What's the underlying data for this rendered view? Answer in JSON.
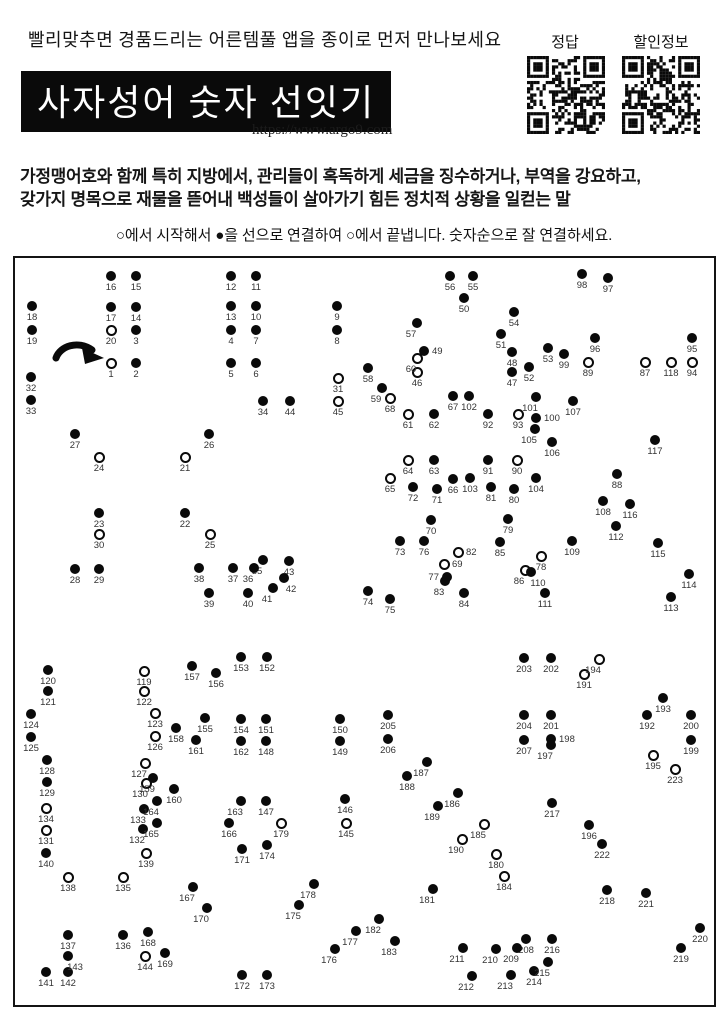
{
  "header": {
    "tagline": "빨리맞추면 경품드리는 어른템풀 앱을 종이로 먼저 만나보세요",
    "title": "사자성어 숫자 선잇기",
    "url": "https://www.argo9.com",
    "qr_labels": [
      "정답",
      "할인정보"
    ]
  },
  "description": {
    "lines": [
      "가정맹어호와 함께 특히 지방에서, 관리들이 혹독하게 세금을 징수하거나, 부역을 강요하고,",
      "갖가지 명목으로 재물을 뜯어내 백성들이 살아가기 힘든 정치적 상황을 일컫는 말"
    ]
  },
  "instructions": "○에서 시작해서 ●을 선으로 연결하여 ○에서 끝냅니다. 숫자순으로 잘 연결하세요.",
  "colors": {
    "ink": "#0a0a0a",
    "label": "#333333"
  },
  "legend": {
    "start_marker": "open-circle",
    "line_marker": "filled-circle",
    "end_marker": "open-circle"
  },
  "puzzle": {
    "dot_types": {
      "f": "filled",
      "o": "open"
    },
    "dots": [
      [
        1,
        111,
        363,
        "o"
      ],
      [
        2,
        136,
        363,
        "f"
      ],
      [
        3,
        136,
        330,
        "f"
      ],
      [
        4,
        231,
        330,
        "f"
      ],
      [
        5,
        231,
        363,
        "f"
      ],
      [
        6,
        256,
        363,
        "f"
      ],
      [
        7,
        256,
        330,
        "f"
      ],
      [
        8,
        337,
        330,
        "f"
      ],
      [
        9,
        337,
        306,
        "f"
      ],
      [
        10,
        256,
        306,
        "f"
      ],
      [
        11,
        256,
        276,
        "f"
      ],
      [
        12,
        231,
        276,
        "f"
      ],
      [
        13,
        231,
        306,
        "f"
      ],
      [
        14,
        136,
        307,
        "f"
      ],
      [
        15,
        136,
        276,
        "f"
      ],
      [
        16,
        111,
        276,
        "f"
      ],
      [
        17,
        111,
        307,
        "f"
      ],
      [
        18,
        32,
        306,
        "f"
      ],
      [
        19,
        32,
        330,
        "f"
      ],
      [
        20,
        111,
        330,
        "o"
      ],
      [
        21,
        185,
        457,
        "o"
      ],
      [
        22,
        185,
        513,
        "f"
      ],
      [
        23,
        99,
        513,
        "f"
      ],
      [
        24,
        99,
        457,
        "o"
      ],
      [
        25,
        210,
        534,
        "o"
      ],
      [
        26,
        209,
        434,
        "f"
      ],
      [
        27,
        75,
        434,
        "f"
      ],
      [
        28,
        75,
        569,
        "f"
      ],
      [
        29,
        99,
        569,
        "f"
      ],
      [
        30,
        99,
        534,
        "o"
      ],
      [
        31,
        338,
        378,
        "o"
      ],
      [
        32,
        31,
        377,
        "f"
      ],
      [
        33,
        31,
        400,
        "f"
      ],
      [
        34,
        263,
        401,
        "f"
      ],
      [
        35,
        263,
        560,
        "f",
        "bl"
      ],
      [
        36,
        254,
        568,
        "f",
        "bl"
      ],
      [
        37,
        233,
        568,
        "f"
      ],
      [
        38,
        199,
        568,
        "f"
      ],
      [
        39,
        209,
        593,
        "f"
      ],
      [
        40,
        248,
        593,
        "f"
      ],
      [
        41,
        273,
        588,
        "f",
        "bl"
      ],
      [
        42,
        284,
        578,
        "f",
        "br"
      ],
      [
        43,
        289,
        561,
        "f"
      ],
      [
        44,
        290,
        401,
        "f"
      ],
      [
        45,
        338,
        401,
        "o"
      ],
      [
        46,
        417,
        372,
        "o"
      ],
      [
        47,
        512,
        372,
        "f"
      ],
      [
        48,
        512,
        352,
        "f"
      ],
      [
        49,
        424,
        351,
        "f",
        "r"
      ],
      [
        50,
        464,
        298,
        "f"
      ],
      [
        51,
        501,
        334,
        "f"
      ],
      [
        52,
        529,
        367,
        "f"
      ],
      [
        53,
        548,
        348,
        "f"
      ],
      [
        54,
        514,
        312,
        "f"
      ],
      [
        55,
        473,
        276,
        "f"
      ],
      [
        56,
        450,
        276,
        "f"
      ],
      [
        57,
        417,
        323,
        "f",
        "bl"
      ],
      [
        58,
        368,
        368,
        "f"
      ],
      [
        59,
        382,
        388,
        "f",
        "bl"
      ],
      [
        60,
        417,
        358,
        "o",
        "bl"
      ],
      [
        61,
        408,
        414,
        "o"
      ],
      [
        62,
        434,
        414,
        "f"
      ],
      [
        63,
        434,
        460,
        "f"
      ],
      [
        64,
        408,
        460,
        "o"
      ],
      [
        65,
        390,
        478,
        "o"
      ],
      [
        66,
        453,
        479,
        "f"
      ],
      [
        67,
        453,
        396,
        "f"
      ],
      [
        68,
        390,
        398,
        "o"
      ],
      [
        69,
        444,
        564,
        "o",
        "r"
      ],
      [
        70,
        431,
        520,
        "f"
      ],
      [
        71,
        437,
        489,
        "f"
      ],
      [
        72,
        413,
        487,
        "f"
      ],
      [
        73,
        400,
        541,
        "f"
      ],
      [
        74,
        368,
        591,
        "f"
      ],
      [
        75,
        390,
        599,
        "f"
      ],
      [
        76,
        424,
        541,
        "f"
      ],
      [
        77,
        447,
        577,
        "f",
        "l"
      ],
      [
        78,
        541,
        556,
        "o"
      ],
      [
        79,
        508,
        519,
        "f"
      ],
      [
        80,
        514,
        489,
        "f"
      ],
      [
        81,
        491,
        487,
        "f"
      ],
      [
        82,
        458,
        552,
        "o",
        "r"
      ],
      [
        83,
        445,
        581,
        "f",
        "bl"
      ],
      [
        84,
        464,
        593,
        "f"
      ],
      [
        85,
        500,
        542,
        "f"
      ],
      [
        86,
        525,
        570,
        "o",
        "bl"
      ],
      [
        87,
        645,
        362,
        "o"
      ],
      [
        88,
        617,
        474,
        "f"
      ],
      [
        89,
        588,
        362,
        "o"
      ],
      [
        90,
        517,
        460,
        "o"
      ],
      [
        91,
        488,
        460,
        "f"
      ],
      [
        92,
        488,
        414,
        "f"
      ],
      [
        93,
        518,
        414,
        "o"
      ],
      [
        94,
        692,
        362,
        "o"
      ],
      [
        95,
        692,
        338,
        "f"
      ],
      [
        96,
        595,
        338,
        "f"
      ],
      [
        97,
        608,
        278,
        "f"
      ],
      [
        98,
        582,
        274,
        "f"
      ],
      [
        99,
        564,
        354,
        "f"
      ],
      [
        100,
        536,
        418,
        "f",
        "r"
      ],
      [
        101,
        536,
        397,
        "f",
        "bl"
      ],
      [
        102,
        469,
        396,
        "f"
      ],
      [
        103,
        470,
        478,
        "f"
      ],
      [
        104,
        536,
        478,
        "f"
      ],
      [
        105,
        535,
        429,
        "f",
        "bl"
      ],
      [
        106,
        552,
        442,
        "f"
      ],
      [
        107,
        573,
        401,
        "f"
      ],
      [
        108,
        603,
        501,
        "f"
      ],
      [
        109,
        572,
        541,
        "f"
      ],
      [
        110,
        531,
        572,
        "f",
        "br"
      ],
      [
        111,
        545,
        593,
        "f"
      ],
      [
        112,
        616,
        526,
        "f"
      ],
      [
        113,
        671,
        597,
        "f"
      ],
      [
        114,
        689,
        574,
        "f"
      ],
      [
        115,
        658,
        543,
        "f"
      ],
      [
        116,
        630,
        504,
        "f"
      ],
      [
        117,
        655,
        440,
        "f"
      ],
      [
        118,
        671,
        362,
        "o"
      ],
      [
        119,
        144,
        671,
        "o"
      ],
      [
        120,
        48,
        670,
        "f"
      ],
      [
        121,
        48,
        691,
        "f"
      ],
      [
        122,
        144,
        691,
        "o"
      ],
      [
        123,
        155,
        713,
        "o"
      ],
      [
        124,
        31,
        714,
        "f"
      ],
      [
        125,
        31,
        737,
        "f"
      ],
      [
        126,
        155,
        736,
        "o"
      ],
      [
        127,
        145,
        763,
        "o",
        "bl"
      ],
      [
        128,
        47,
        760,
        "f"
      ],
      [
        129,
        47,
        782,
        "f"
      ],
      [
        130,
        146,
        783,
        "o",
        "bl"
      ],
      [
        131,
        46,
        830,
        "o"
      ],
      [
        132,
        143,
        829,
        "f",
        "bl"
      ],
      [
        133,
        144,
        809,
        "f",
        "bl"
      ],
      [
        134,
        46,
        808,
        "o"
      ],
      [
        135,
        123,
        877,
        "o"
      ],
      [
        136,
        123,
        935,
        "f"
      ],
      [
        137,
        68,
        935,
        "f"
      ],
      [
        138,
        68,
        877,
        "o"
      ],
      [
        139,
        146,
        853,
        "o"
      ],
      [
        140,
        46,
        853,
        "f"
      ],
      [
        141,
        46,
        972,
        "f"
      ],
      [
        142,
        68,
        972,
        "f"
      ],
      [
        143,
        68,
        956,
        "f",
        "br"
      ],
      [
        144,
        145,
        956,
        "o"
      ],
      [
        145,
        346,
        823,
        "o"
      ],
      [
        146,
        345,
        799,
        "f"
      ],
      [
        147,
        266,
        801,
        "f"
      ],
      [
        148,
        266,
        741,
        "f"
      ],
      [
        149,
        340,
        741,
        "f"
      ],
      [
        150,
        340,
        719,
        "f"
      ],
      [
        151,
        266,
        719,
        "f"
      ],
      [
        152,
        267,
        657,
        "f"
      ],
      [
        153,
        241,
        657,
        "f"
      ],
      [
        154,
        241,
        719,
        "f"
      ],
      [
        155,
        205,
        718,
        "f"
      ],
      [
        156,
        216,
        673,
        "f"
      ],
      [
        157,
        192,
        666,
        "f"
      ],
      [
        158,
        176,
        728,
        "f"
      ],
      [
        159,
        153,
        778,
        "f",
        "bl"
      ],
      [
        160,
        174,
        789,
        "f"
      ],
      [
        161,
        196,
        740,
        "f"
      ],
      [
        162,
        241,
        741,
        "f"
      ],
      [
        163,
        241,
        801,
        "f",
        "bl"
      ],
      [
        164,
        157,
        801,
        "f",
        "bl"
      ],
      [
        165,
        157,
        823,
        "f",
        "bl"
      ],
      [
        166,
        229,
        823,
        "f"
      ],
      [
        167,
        193,
        887,
        "f",
        "bl"
      ],
      [
        168,
        148,
        932,
        "f"
      ],
      [
        169,
        165,
        953,
        "f"
      ],
      [
        170,
        207,
        908,
        "f",
        "bl"
      ],
      [
        171,
        242,
        849,
        "f"
      ],
      [
        172,
        242,
        975,
        "f"
      ],
      [
        173,
        267,
        975,
        "f"
      ],
      [
        174,
        267,
        845,
        "f"
      ],
      [
        175,
        299,
        905,
        "f",
        "bl"
      ],
      [
        176,
        335,
        949,
        "f",
        "bl"
      ],
      [
        177,
        356,
        931,
        "f",
        "bl"
      ],
      [
        178,
        314,
        884,
        "f",
        "bl"
      ],
      [
        179,
        281,
        823,
        "o"
      ],
      [
        180,
        496,
        854,
        "o"
      ],
      [
        181,
        433,
        889,
        "f",
        "bl"
      ],
      [
        182,
        379,
        919,
        "f",
        "bl"
      ],
      [
        183,
        395,
        941,
        "f",
        "bl"
      ],
      [
        184,
        504,
        876,
        "o"
      ],
      [
        185,
        484,
        824,
        "o",
        "bl"
      ],
      [
        186,
        458,
        793,
        "f",
        "bl"
      ],
      [
        187,
        427,
        762,
        "f",
        "bl"
      ],
      [
        188,
        407,
        776,
        "f"
      ],
      [
        189,
        438,
        806,
        "f",
        "bl"
      ],
      [
        190,
        462,
        839,
        "o",
        "bl"
      ],
      [
        191,
        584,
        674,
        "o"
      ],
      [
        192,
        647,
        715,
        "f"
      ],
      [
        193,
        663,
        698,
        "f"
      ],
      [
        194,
        599,
        659,
        "o",
        "bl"
      ],
      [
        195,
        653,
        755,
        "o"
      ],
      [
        196,
        589,
        825,
        "f"
      ],
      [
        197,
        551,
        745,
        "f",
        "bl"
      ],
      [
        198,
        551,
        739,
        "f",
        "r"
      ],
      [
        199,
        691,
        740,
        "f"
      ],
      [
        200,
        691,
        715,
        "f"
      ],
      [
        201,
        551,
        715,
        "f"
      ],
      [
        202,
        551,
        658,
        "f"
      ],
      [
        203,
        524,
        658,
        "f"
      ],
      [
        204,
        524,
        715,
        "f"
      ],
      [
        205,
        388,
        715,
        "f"
      ],
      [
        206,
        388,
        739,
        "f"
      ],
      [
        207,
        524,
        740,
        "f"
      ],
      [
        208,
        526,
        939,
        "f"
      ],
      [
        209,
        517,
        948,
        "f",
        "bl"
      ],
      [
        210,
        496,
        949,
        "f",
        "bl"
      ],
      [
        211,
        463,
        948,
        "f",
        "bl"
      ],
      [
        212,
        472,
        976,
        "f",
        "bl"
      ],
      [
        213,
        511,
        975,
        "f",
        "bl"
      ],
      [
        214,
        534,
        971,
        "f"
      ],
      [
        215,
        548,
        962,
        "f",
        "bl"
      ],
      [
        216,
        552,
        939,
        "f"
      ],
      [
        217,
        552,
        803,
        "f"
      ],
      [
        218,
        607,
        890,
        "f"
      ],
      [
        219,
        681,
        948,
        "f"
      ],
      [
        220,
        700,
        928,
        "f"
      ],
      [
        221,
        646,
        893,
        "f"
      ],
      [
        222,
        602,
        844,
        "f"
      ],
      [
        223,
        675,
        769,
        "o"
      ]
    ]
  }
}
